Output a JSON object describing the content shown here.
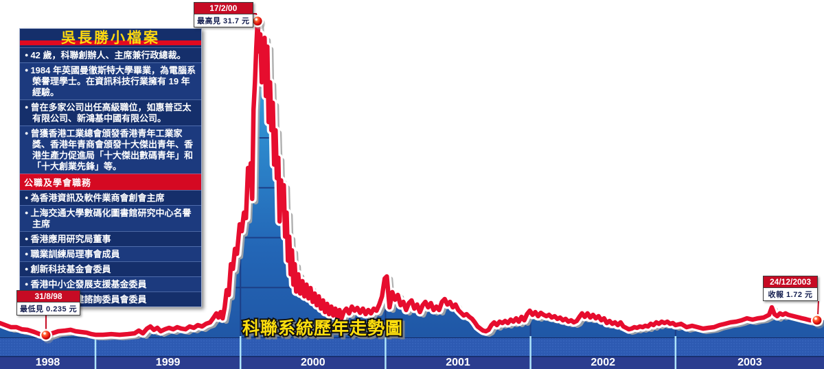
{
  "info_box": {
    "title": "吳長勝小檔案",
    "items": [
      "42 歲，科聯創辦人、主席兼行政總裁。",
      "1984 年英國曼徹斯特大學畢業，為電腦系榮譽理學士。在資訊科技行業擁有 19 年經驗。",
      "曾在多家公司出任高級職位，如惠普亞太有限公司、新鴻基中國有限公司。",
      "曾獲香港工業總會頒發香港青年工業家獎、香港年青商會頒發十大傑出青年、香港生產力促進局「十大傑出數碼青年」和「十大創業先鋒」等。"
    ],
    "section_header": "公職及學會職務",
    "section_items": [
      "為香港資訊及軟件業商會創會主席",
      "上海交通大學數碼化圖書館研究中心名譽主席",
      "香港應用研究局董事",
      "職業訓練局理事會成員",
      "創新科技基金會委員",
      "香港中小企發展支援基金委員",
      "香港資訊基建諮詢委員會委員"
    ]
  },
  "annotations": {
    "high": {
      "date": "17/2/00",
      "label": "最高見 31.7 元"
    },
    "low": {
      "date": "31/8/98",
      "label": "最低見 0.235 元"
    },
    "close": {
      "date": "24/12/2003",
      "label": "收報 1.72 元"
    }
  },
  "chart_data": {
    "type": "area",
    "title": "科聯系統歷年走勢圖",
    "unit": "元",
    "x_axis": {
      "labels": [
        "1998",
        "1999",
        "2000",
        "2001",
        "2002",
        "2003"
      ]
    },
    "ylim": [
      0,
      33
    ],
    "xlim_year": [
      1998.34,
      2004.02
    ],
    "y_gridlines_hkd": [
      5,
      10,
      15,
      20,
      25,
      30
    ],
    "grid": true,
    "legend": "none",
    "key_points": {
      "low": {
        "date": "31/8/98",
        "t": 1998.659,
        "price": 0.235
      },
      "high": {
        "date": "17/2/00",
        "t": 2000.118,
        "price": 31.7
      },
      "close": {
        "date": "24/12/2003",
        "t": 2003.976,
        "price": 1.72
      }
    },
    "series": [
      {
        "name": "科聯系統 (股價, 元)",
        "points": [
          [
            1998.341,
            1.44
          ],
          [
            1998.379,
            1.24
          ],
          [
            1998.417,
            1.03
          ],
          [
            1998.455,
            1.03
          ],
          [
            1998.493,
            0.82
          ],
          [
            1998.531,
            0.76
          ],
          [
            1998.578,
            0.55
          ],
          [
            1998.616,
            0.34
          ],
          [
            1998.659,
            0.235
          ],
          [
            1998.701,
            0.41
          ],
          [
            1998.744,
            0.62
          ],
          [
            1998.791,
            0.69
          ],
          [
            1998.829,
            0.76
          ],
          [
            1998.863,
            0.62
          ],
          [
            1998.9,
            0.55
          ],
          [
            1998.938,
            0.48
          ],
          [
            1998.972,
            0.34
          ],
          [
            1999.0,
            0.27
          ],
          [
            1999.052,
            0.27
          ],
          [
            1999.109,
            0.34
          ],
          [
            1999.166,
            0.27
          ],
          [
            1999.223,
            0.34
          ],
          [
            1999.27,
            0.41
          ],
          [
            1999.299,
            0.69
          ],
          [
            1999.327,
            0.41
          ],
          [
            1999.355,
            0.89
          ],
          [
            1999.379,
            1.1
          ],
          [
            1999.403,
            0.76
          ],
          [
            1999.427,
            0.96
          ],
          [
            1999.45,
            0.62
          ],
          [
            1999.479,
            0.82
          ],
          [
            1999.507,
            0.96
          ],
          [
            1999.536,
            0.82
          ],
          [
            1999.564,
            1.03
          ],
          [
            1999.592,
            0.89
          ],
          [
            1999.621,
            0.82
          ],
          [
            1999.649,
            1.1
          ],
          [
            1999.678,
            0.96
          ],
          [
            1999.706,
            1.24
          ],
          [
            1999.735,
            1.1
          ],
          [
            1999.763,
            1.37
          ],
          [
            1999.791,
            1.51
          ],
          [
            1999.815,
            1.99
          ],
          [
            1999.834,
            2.41
          ],
          [
            1999.848,
            1.99
          ],
          [
            1999.863,
            2.54
          ],
          [
            1999.877,
            1.92
          ],
          [
            1999.891,
            3.02
          ],
          [
            1999.905,
            4.74
          ],
          [
            1999.919,
            4.26
          ],
          [
            1999.934,
            7.35
          ],
          [
            1999.948,
            6.87
          ],
          [
            1999.962,
            8.87
          ],
          [
            1999.976,
            8.38
          ],
          [
            1999.995,
            11.34
          ],
          [
            2000.009,
            10.65
          ],
          [
            2000.024,
            12.51
          ],
          [
            2000.038,
            11.96
          ],
          [
            2000.052,
            16.98
          ],
          [
            2000.062,
            15.26
          ],
          [
            2000.071,
            17.46
          ],
          [
            2000.081,
            13.88
          ],
          [
            2000.09,
            22.82
          ],
          [
            2000.1,
            25.57
          ],
          [
            2000.109,
            29.0
          ],
          [
            2000.118,
            31.7
          ],
          [
            2000.128,
            28.66
          ],
          [
            2000.137,
            30.38
          ],
          [
            2000.147,
            25.57
          ],
          [
            2000.156,
            28.32
          ],
          [
            2000.166,
            30.03
          ],
          [
            2000.175,
            24.19
          ],
          [
            2000.185,
            29.14
          ],
          [
            2000.194,
            21.58
          ],
          [
            2000.204,
            25.57
          ],
          [
            2000.213,
            20.76
          ],
          [
            2000.223,
            23.51
          ],
          [
            2000.232,
            17.32
          ],
          [
            2000.242,
            20.76
          ],
          [
            2000.251,
            15.95
          ],
          [
            2000.261,
            18.01
          ],
          [
            2000.27,
            11.62
          ],
          [
            2000.28,
            15.74
          ],
          [
            2000.289,
            13.2
          ],
          [
            2000.299,
            15.26
          ],
          [
            2000.308,
            10.1
          ],
          [
            2000.318,
            12.51
          ],
          [
            2000.327,
            7.7
          ],
          [
            2000.336,
            10.1
          ],
          [
            2000.346,
            6.32
          ],
          [
            2000.355,
            8.73
          ],
          [
            2000.365,
            5.29
          ],
          [
            2000.374,
            7.35
          ],
          [
            2000.384,
            4.6
          ],
          [
            2000.398,
            6.32
          ],
          [
            2000.412,
            4.4
          ],
          [
            2000.427,
            5.64
          ],
          [
            2000.441,
            4.12
          ],
          [
            2000.455,
            5.29
          ],
          [
            2000.469,
            3.92
          ],
          [
            2000.483,
            4.95
          ],
          [
            2000.498,
            3.57
          ],
          [
            2000.512,
            4.4
          ],
          [
            2000.526,
            3.23
          ],
          [
            2000.54,
            4.12
          ],
          [
            2000.555,
            2.89
          ],
          [
            2000.569,
            3.71
          ],
          [
            2000.583,
            2.54
          ],
          [
            2000.597,
            3.37
          ],
          [
            2000.611,
            2.34
          ],
          [
            2000.626,
            3.09
          ],
          [
            2000.64,
            2.2
          ],
          [
            2000.654,
            2.89
          ],
          [
            2000.668,
            2.06
          ],
          [
            2000.683,
            2.75
          ],
          [
            2000.697,
            1.92
          ],
          [
            2000.711,
            2.54
          ],
          [
            2000.73,
            2.89
          ],
          [
            2000.749,
            2.41
          ],
          [
            2000.768,
            3.09
          ],
          [
            2000.787,
            2.68
          ],
          [
            2000.806,
            2.96
          ],
          [
            2000.825,
            2.47
          ],
          [
            2000.844,
            2.89
          ],
          [
            2000.863,
            2.34
          ],
          [
            2000.881,
            2.75
          ],
          [
            2000.9,
            2.41
          ],
          [
            2000.919,
            2.89
          ],
          [
            2000.938,
            2.68
          ],
          [
            2000.957,
            3.3
          ],
          [
            2000.976,
            4.12
          ],
          [
            2000.995,
            5.91
          ],
          [
            2001.009,
            6.12
          ],
          [
            2001.028,
            3.02
          ],
          [
            2001.047,
            4.54
          ],
          [
            2001.066,
            3.78
          ],
          [
            2001.085,
            4.26
          ],
          [
            2001.104,
            3.23
          ],
          [
            2001.123,
            3.57
          ],
          [
            2001.142,
            2.75
          ],
          [
            2001.161,
            3.44
          ],
          [
            2001.18,
            3.71
          ],
          [
            2001.199,
            2.89
          ],
          [
            2001.218,
            3.3
          ],
          [
            2001.237,
            2.54
          ],
          [
            2001.256,
            3.23
          ],
          [
            2001.275,
            3.57
          ],
          [
            2001.294,
            3.02
          ],
          [
            2001.313,
            3.44
          ],
          [
            2001.332,
            2.75
          ],
          [
            2001.351,
            3.09
          ],
          [
            2001.37,
            2.75
          ],
          [
            2001.389,
            3.57
          ],
          [
            2001.408,
            3.85
          ],
          [
            2001.427,
            3.3
          ],
          [
            2001.445,
            3.57
          ],
          [
            2001.464,
            3.02
          ],
          [
            2001.483,
            3.3
          ],
          [
            2001.502,
            2.75
          ],
          [
            2001.521,
            2.47
          ],
          [
            2001.54,
            2.2
          ],
          [
            2001.559,
            2.34
          ],
          [
            2001.578,
            2.06
          ],
          [
            2001.597,
            1.86
          ],
          [
            2001.616,
            1.51
          ],
          [
            2001.635,
            1.1
          ],
          [
            2001.654,
            0.89
          ],
          [
            2001.673,
            0.69
          ],
          [
            2001.692,
            0.62
          ],
          [
            2001.711,
            0.76
          ],
          [
            2001.73,
            1.24
          ],
          [
            2001.749,
            1.51
          ],
          [
            2001.768,
            1.24
          ],
          [
            2001.787,
            1.58
          ],
          [
            2001.806,
            1.44
          ],
          [
            2001.825,
            1.65
          ],
          [
            2001.844,
            1.44
          ],
          [
            2001.863,
            1.79
          ],
          [
            2001.882,
            1.58
          ],
          [
            2001.901,
            1.92
          ],
          [
            2001.919,
            1.58
          ],
          [
            2001.938,
            2.06
          ],
          [
            2001.957,
            1.72
          ],
          [
            2001.976,
            2.34
          ],
          [
            2001.995,
            2.68
          ],
          [
            2002.014,
            2.27
          ],
          [
            2002.033,
            2.54
          ],
          [
            2002.052,
            2.13
          ],
          [
            2002.071,
            2.47
          ],
          [
            2002.09,
            2.27
          ],
          [
            2002.109,
            2.13
          ],
          [
            2002.128,
            2.27
          ],
          [
            2002.147,
            1.99
          ],
          [
            2002.166,
            2.13
          ],
          [
            2002.185,
            1.86
          ],
          [
            2002.204,
            1.99
          ],
          [
            2002.223,
            1.72
          ],
          [
            2002.242,
            1.86
          ],
          [
            2002.261,
            1.58
          ],
          [
            2002.28,
            1.72
          ],
          [
            2002.299,
            1.51
          ],
          [
            2002.318,
            1.65
          ],
          [
            2002.337,
            2.06
          ],
          [
            2002.355,
            2.41
          ],
          [
            2002.374,
            2.06
          ],
          [
            2002.393,
            2.41
          ],
          [
            2002.412,
            1.99
          ],
          [
            2002.431,
            2.27
          ],
          [
            2002.45,
            1.92
          ],
          [
            2002.469,
            2.13
          ],
          [
            2002.488,
            1.72
          ],
          [
            2002.507,
            1.92
          ],
          [
            2002.526,
            1.44
          ],
          [
            2002.545,
            1.65
          ],
          [
            2002.564,
            1.37
          ],
          [
            2002.583,
            1.51
          ],
          [
            2002.602,
            1.24
          ],
          [
            2002.621,
            1.51
          ],
          [
            2002.64,
            1.1
          ],
          [
            2002.659,
            0.96
          ],
          [
            2002.678,
            0.82
          ],
          [
            2002.697,
            0.89
          ],
          [
            2002.716,
            1.03
          ],
          [
            2002.735,
            0.96
          ],
          [
            2002.754,
            1.1
          ],
          [
            2002.773,
            1.03
          ],
          [
            2002.791,
            1.17
          ],
          [
            2002.81,
            1.1
          ],
          [
            2002.829,
            1.37
          ],
          [
            2002.848,
            1.24
          ],
          [
            2002.867,
            1.51
          ],
          [
            2002.886,
            1.37
          ],
          [
            2002.905,
            1.58
          ],
          [
            2002.924,
            1.44
          ],
          [
            2002.943,
            1.58
          ],
          [
            2002.962,
            1.37
          ],
          [
            2002.981,
            1.44
          ],
          [
            2003.0,
            1.24
          ],
          [
            2003.038,
            1.37
          ],
          [
            2003.076,
            1.03
          ],
          [
            2003.114,
            1.17
          ],
          [
            2003.152,
            1.03
          ],
          [
            2003.19,
            0.89
          ],
          [
            2003.227,
            0.96
          ],
          [
            2003.265,
            1.03
          ],
          [
            2003.303,
            1.24
          ],
          [
            2003.341,
            1.37
          ],
          [
            2003.379,
            1.51
          ],
          [
            2003.417,
            1.58
          ],
          [
            2003.455,
            1.72
          ],
          [
            2003.493,
            1.92
          ],
          [
            2003.531,
            1.79
          ],
          [
            2003.569,
            1.92
          ],
          [
            2003.607,
            1.99
          ],
          [
            2003.645,
            2.27
          ],
          [
            2003.664,
            3.02
          ],
          [
            2003.682,
            2.34
          ],
          [
            2003.701,
            2.13
          ],
          [
            2003.72,
            2.41
          ],
          [
            2003.739,
            2.27
          ],
          [
            2003.758,
            2.41
          ],
          [
            2003.777,
            2.27
          ],
          [
            2003.796,
            2.2
          ],
          [
            2003.815,
            2.13
          ],
          [
            2003.834,
            2.06
          ],
          [
            2003.853,
            1.99
          ],
          [
            2003.872,
            1.92
          ],
          [
            2003.891,
            1.86
          ],
          [
            2003.91,
            1.79
          ],
          [
            2003.929,
            1.72
          ],
          [
            2003.948,
            1.72
          ],
          [
            2003.976,
            1.72
          ]
        ]
      }
    ],
    "colors": {
      "line_red": "#e60d2e",
      "outline_white": "#ffffff",
      "shadow_gray": "#a6a6a6",
      "fill_top": "#41b7ea",
      "fill_mid": "#2e8ccf",
      "fill_bottom": "#2057a6",
      "grid_navy": "#1c3f87",
      "band_mid_blue": "#2d5ab2",
      "band_dot_blue": "#3e6cc2",
      "band_navy": "#2b3d8f",
      "axis_line": "#132a66",
      "divider_cyan": "#aee4fa",
      "callout_red": "#c60b24",
      "title_yellow": "#ffdf0e",
      "infobox_navy": "#152f6b",
      "infobox_header_red": "#d50922"
    }
  }
}
